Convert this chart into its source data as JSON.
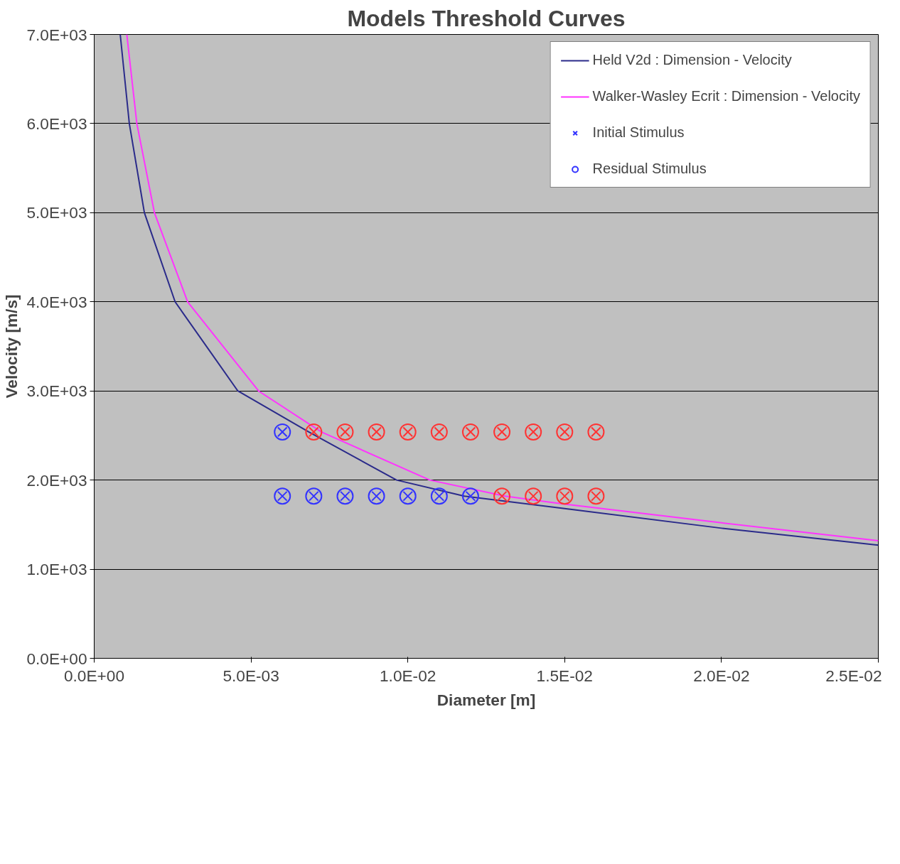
{
  "chart_data": {
    "type": "line",
    "title": "Models Threshold Curves",
    "xlabel": "Diameter [m]",
    "ylabel": "Velocity [m/s]",
    "xlim": [
      0,
      0.025
    ],
    "ylim": [
      0,
      7000
    ],
    "xticks": [
      {
        "value": 0,
        "label": "0.0E+00"
      },
      {
        "value": 0.005,
        "label": "5.0E-03"
      },
      {
        "value": 0.01,
        "label": "1.0E-02"
      },
      {
        "value": 0.015,
        "label": "1.5E-02"
      },
      {
        "value": 0.02,
        "label": "2.0E-02"
      },
      {
        "value": 0.025,
        "label": "2.5E-02"
      }
    ],
    "yticks": [
      {
        "value": 0,
        "label": "0.0E+00"
      },
      {
        "value": 1000,
        "label": "1.0E+03"
      },
      {
        "value": 2000,
        "label": "2.0E+03"
      },
      {
        "value": 3000,
        "label": "3.0E+03"
      },
      {
        "value": 4000,
        "label": "4.0E+03"
      },
      {
        "value": 5000,
        "label": "5.0E+03"
      },
      {
        "value": 6000,
        "label": "6.0E+03"
      },
      {
        "value": 7000,
        "label": "7.0E+03"
      }
    ],
    "grid": "y",
    "legend": "top right",
    "series": [
      {
        "name": "Held V2d : Dimension - Velocity",
        "color": "#2a2a8a",
        "marker": "none",
        "x": [
          0.00083,
          0.00112,
          0.0016,
          0.00258,
          0.00458,
          0.00684,
          0.00964,
          0.0118,
          0.015,
          0.02,
          0.025
        ],
        "values": [
          7000,
          6000,
          5000,
          4000,
          3000,
          2540,
          2000,
          1820,
          1680,
          1460,
          1270
        ]
      },
      {
        "name": "Walker-Wasley Ecrit : Dimension - Velocity",
        "color": "#ff33ff",
        "marker": "none",
        "x": [
          0.00104,
          0.00136,
          0.00192,
          0.00298,
          0.00524,
          0.00724,
          0.0107,
          0.0131,
          0.015,
          0.02,
          0.025
        ],
        "values": [
          7000,
          6000,
          5000,
          4000,
          3000,
          2540,
          2000,
          1820,
          1730,
          1520,
          1320
        ]
      },
      {
        "name": "Initial Stimulus",
        "type": "scatter",
        "marker": "cross",
        "x": [
          0.006,
          0.007,
          0.008,
          0.009,
          0.01,
          0.011,
          0.012,
          0.013,
          0.014,
          0.015,
          0.016,
          0.006,
          0.007,
          0.008,
          0.009,
          0.01,
          0.011,
          0.012,
          0.013,
          0.014,
          0.015,
          0.016
        ],
        "values": [
          2540,
          2540,
          2540,
          2540,
          2540,
          2540,
          2540,
          2540,
          2540,
          2540,
          2540,
          1820,
          1820,
          1820,
          1820,
          1820,
          1820,
          1820,
          1820,
          1820,
          1820,
          1820
        ],
        "colors": [
          "#3333ff",
          "#ff3333",
          "#ff3333",
          "#ff3333",
          "#ff3333",
          "#ff3333",
          "#ff3333",
          "#ff3333",
          "#ff3333",
          "#ff3333",
          "#ff3333",
          "#3333ff",
          "#3333ff",
          "#3333ff",
          "#3333ff",
          "#3333ff",
          "#3333ff",
          "#3333ff",
          "#ff3333",
          "#ff3333",
          "#ff3333",
          "#ff3333"
        ]
      },
      {
        "name": "Residual Stimulus",
        "type": "scatter",
        "marker": "circle",
        "x": [
          0.006,
          0.007,
          0.008,
          0.009,
          0.01,
          0.011,
          0.012,
          0.013,
          0.014,
          0.015,
          0.016,
          0.006,
          0.007,
          0.008,
          0.009,
          0.01,
          0.011,
          0.012,
          0.013,
          0.014,
          0.015,
          0.016
        ],
        "values": [
          2540,
          2540,
          2540,
          2540,
          2540,
          2540,
          2540,
          2540,
          2540,
          2540,
          2540,
          1820,
          1820,
          1820,
          1820,
          1820,
          1820,
          1820,
          1820,
          1820,
          1820,
          1820
        ],
        "colors": [
          "#3333ff",
          "#ff3333",
          "#ff3333",
          "#ff3333",
          "#ff3333",
          "#ff3333",
          "#ff3333",
          "#ff3333",
          "#ff3333",
          "#ff3333",
          "#ff3333",
          "#3333ff",
          "#3333ff",
          "#3333ff",
          "#3333ff",
          "#3333ff",
          "#3333ff",
          "#3333ff",
          "#ff3333",
          "#ff3333",
          "#ff3333",
          "#ff3333"
        ]
      }
    ]
  }
}
